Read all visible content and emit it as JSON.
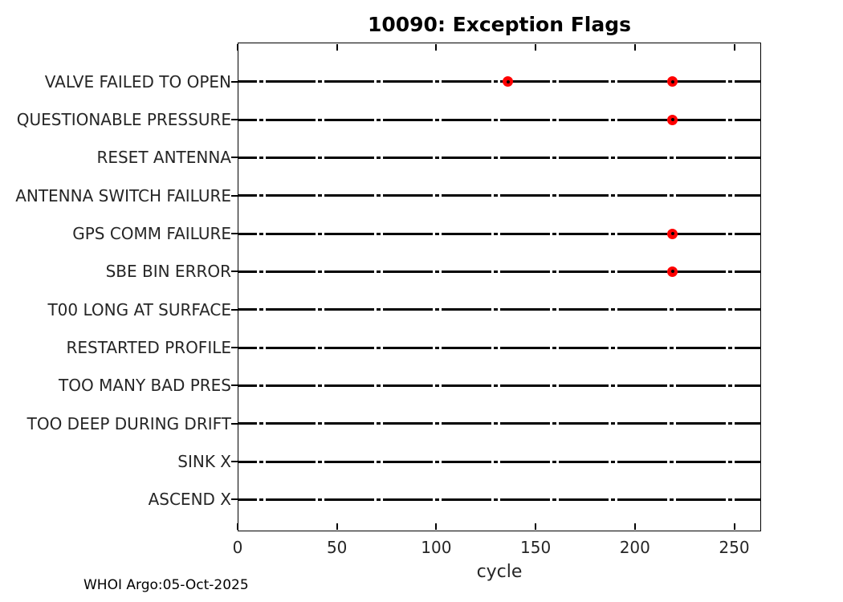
{
  "title": "10090: Exception Flags",
  "footer": "WHOI Argo:05-Oct-2025",
  "chart_data": {
    "type": "scatter",
    "title": "10090: Exception Flags",
    "xlabel": "cycle",
    "xlim": [
      0,
      263
    ],
    "xticks": [
      0,
      50,
      100,
      150,
      200,
      250
    ],
    "grid": false,
    "legend": "none",
    "categories": [
      "VALVE FAILED TO OPEN",
      "QUESTIONABLE PRESSURE",
      "RESET ANTENNA",
      "ANTENNA SWITCH FAILURE",
      "GPS COMM FAILURE",
      "SBE BIN ERROR",
      "T00 LONG AT SURFACE",
      "RESTARTED PROFILE",
      "TOO MANY BAD PRES",
      "TOO DEEP DURING DRIFT",
      "SINK X",
      "ASCEND X"
    ],
    "timeline_cycle_range": [
      0,
      263
    ],
    "missing_cycle_clusters": [
      12,
      41.5,
      71,
      100.5,
      130,
      159.5,
      189,
      218.5,
      248
    ],
    "events": [
      {
        "flag": "VALVE FAILED TO OPEN",
        "cycles": [
          136,
          219
        ]
      },
      {
        "flag": "QUESTIONABLE PRESSURE",
        "cycles": [
          219
        ]
      },
      {
        "flag": "GPS COMM FAILURE",
        "cycles": [
          219
        ]
      },
      {
        "flag": "SBE BIN ERROR",
        "cycles": [
          219
        ]
      }
    ],
    "colors": {
      "line": "#000000",
      "marker": "#ff0000",
      "text": "#262626",
      "title": "#000000"
    }
  }
}
